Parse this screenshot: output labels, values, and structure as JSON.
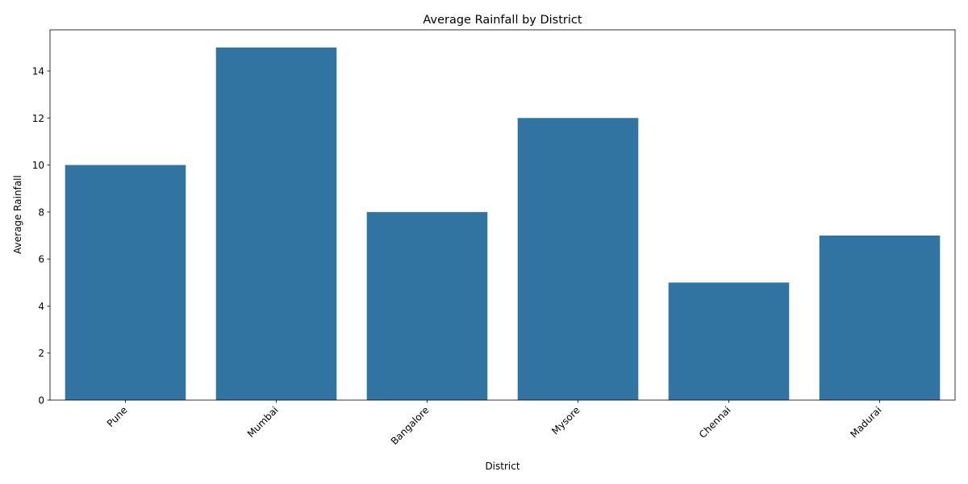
{
  "chart_data": {
    "type": "bar",
    "title": "Average Rainfall by District",
    "xlabel": "District",
    "ylabel": "Average Rainfall",
    "categories": [
      "Pune",
      "Mumbai",
      "Bangalore",
      "Mysore",
      "Chennai",
      "Madurai"
    ],
    "values": [
      10,
      15,
      8,
      12,
      5,
      7
    ],
    "ylim": [
      0,
      15.75
    ],
    "yticks": [
      0,
      2,
      4,
      6,
      8,
      10,
      12,
      14
    ],
    "bar_color": "#3274a1",
    "grid": false,
    "legend": "none"
  }
}
